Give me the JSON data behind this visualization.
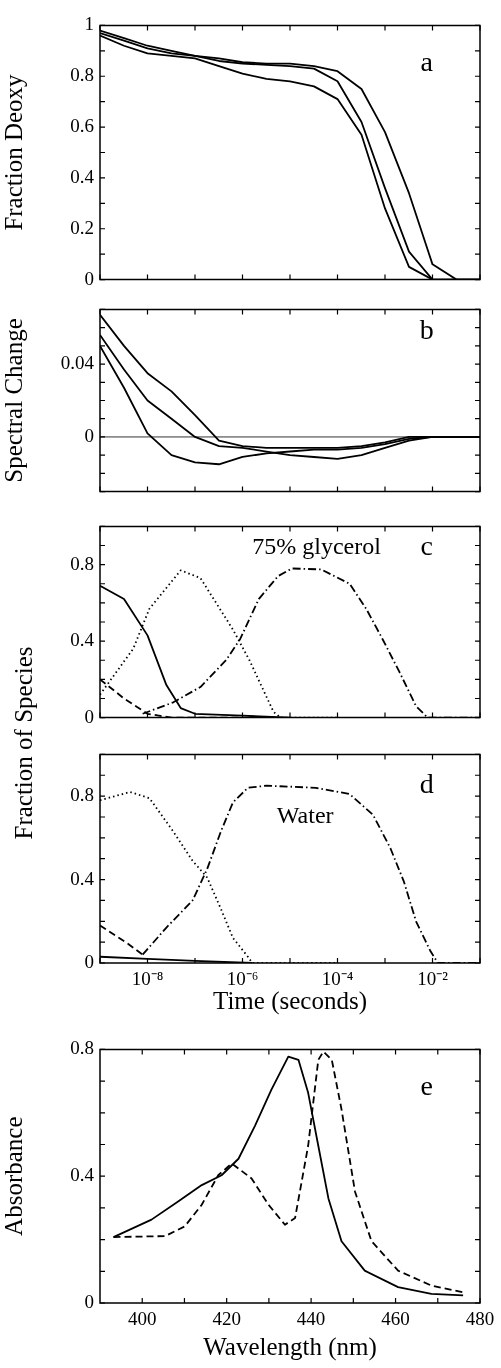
{
  "chart_data": [
    {
      "type": "line",
      "ylabel": "Fraction Deoxy",
      "log": "x",
      "tick_labels": "y",
      "annotations": [
        "a"
      ],
      "xlim": [
        1e-09,
        0.1
      ],
      "xticks": [
        {
          "value": 1e-09,
          "label": null
        },
        {
          "value": 1e-08,
          "label": null
        },
        {
          "value": 1e-07,
          "label": null
        },
        {
          "value": 1e-06,
          "label": null
        },
        {
          "value": 1e-05,
          "label": null
        },
        {
          "value": 0.0001,
          "label": null
        },
        {
          "value": 0.001,
          "label": null
        },
        {
          "value": 0.01,
          "label": null
        },
        {
          "value": 0.1,
          "label": null
        }
      ],
      "ylim": [
        0,
        1
      ],
      "yticks": [
        0,
        {
          "value": 0.1,
          "label": null
        },
        0.2,
        {
          "value": 0.3,
          "label": null
        },
        0.4,
        {
          "value": 0.5,
          "label": null
        },
        0.6,
        {
          "value": 0.7,
          "label": null
        },
        0.8,
        {
          "value": 0.9,
          "label": null
        },
        1
      ],
      "x": [
        1e-09,
        3.2e-09,
        1e-08,
        3.2e-08,
        1e-07,
        3.2e-07,
        1e-06,
        3.2e-06,
        1e-05,
        3.2e-05,
        0.0001,
        0.00032,
        0.001,
        0.0032,
        0.01,
        0.032,
        0.1
      ],
      "series": [
        {
          "color": "#000000",
          "line_style": "solid",
          "values": [
            0.98,
            0.95,
            0.92,
            0.9,
            0.88,
            0.87,
            0.855,
            0.85,
            0.85,
            0.84,
            0.82,
            0.75,
            0.58,
            0.34,
            0.06,
            0,
            0
          ]
        },
        {
          "color": "#000000",
          "line_style": "solid",
          "values": [
            0.97,
            0.94,
            0.91,
            0.89,
            0.88,
            0.86,
            0.85,
            0.845,
            0.84,
            0.83,
            0.78,
            0.62,
            0.36,
            0.11,
            0,
            0,
            0
          ]
        },
        {
          "color": "#000000",
          "line_style": "solid",
          "values": [
            0.96,
            0.92,
            0.89,
            0.88,
            0.87,
            0.84,
            0.81,
            0.79,
            0.78,
            0.76,
            0.71,
            0.57,
            0.28,
            0.05,
            0,
            0,
            0
          ]
        }
      ]
    },
    {
      "type": "line",
      "ylabel": "Spectral Change",
      "log": "x",
      "tick_labels": "y",
      "annotations": [
        "b"
      ],
      "xlim": [
        1e-09,
        0.1
      ],
      "xticks": [
        {
          "value": 1e-09,
          "label": null
        },
        {
          "value": 1e-08,
          "label": null
        },
        {
          "value": 1e-07,
          "label": null
        },
        {
          "value": 1e-06,
          "label": null
        },
        {
          "value": 1e-05,
          "label": null
        },
        {
          "value": 0.0001,
          "label": null
        },
        {
          "value": 0.001,
          "label": null
        },
        {
          "value": 0.01,
          "label": null
        },
        {
          "value": 0.1,
          "label": null
        }
      ],
      "ylim": [
        -0.03,
        0.07
      ],
      "yticks": [
        {
          "value": -0.03,
          "label": null
        },
        {
          "value": -0.02,
          "label": null
        },
        {
          "value": -0.01,
          "label": null
        },
        0,
        {
          "value": 0.01,
          "label": null
        },
        {
          "value": 0.02,
          "label": null
        },
        {
          "value": 0.03,
          "label": null
        },
        0.04,
        {
          "value": 0.05,
          "label": null
        },
        {
          "value": 0.06,
          "label": null
        },
        {
          "value": 0.07,
          "label": null
        }
      ],
      "ref_lines": [
        {
          "axis": "y",
          "value": 0,
          "label": null,
          "color": "#000000"
        }
      ],
      "x": [
        1e-09,
        3.2e-09,
        1e-08,
        3.2e-08,
        1e-07,
        3.2e-07,
        1e-06,
        3.2e-06,
        1e-05,
        3.2e-05,
        0.0001,
        0.00032,
        0.001,
        0.0032,
        0.01,
        0.032,
        0.1
      ],
      "series": [
        {
          "color": "#000000",
          "line_style": "solid",
          "values": [
            0.067,
            0.05,
            0.035,
            0.025,
            0.012,
            -0.002,
            -0.005,
            -0.006,
            -0.006,
            -0.006,
            -0.006,
            -0.005,
            -0.003,
            0,
            0,
            0,
            0
          ]
        },
        {
          "color": "#000000",
          "line_style": "solid",
          "values": [
            0.056,
            0.037,
            0.02,
            0.01,
            0,
            -0.005,
            -0.006,
            -0.008,
            -0.01,
            -0.011,
            -0.012,
            -0.01,
            -0.006,
            -0.002,
            0,
            0,
            0
          ]
        },
        {
          "color": "#000000",
          "line_style": "solid",
          "values": [
            0.05,
            0.027,
            0.002,
            -0.01,
            -0.014,
            -0.015,
            -0.011,
            -0.009,
            -0.008,
            -0.007,
            -0.007,
            -0.006,
            -0.004,
            -0.001,
            0,
            0,
            0
          ]
        }
      ]
    },
    {
      "type": "line",
      "ylabel": "Fraction of Species",
      "log": "x",
      "tick_labels": "y",
      "annotations": [
        "75% glycerol",
        "c"
      ],
      "xlim": [
        1e-09,
        0.1
      ],
      "xticks": [
        {
          "value": 1e-09,
          "label": null
        },
        {
          "value": 1e-08,
          "label": null
        },
        {
          "value": 1e-07,
          "label": null
        },
        {
          "value": 1e-06,
          "label": null
        },
        {
          "value": 1e-05,
          "label": null
        },
        {
          "value": 0.0001,
          "label": null
        },
        {
          "value": 0.001,
          "label": null
        },
        {
          "value": 0.01,
          "label": null
        },
        {
          "value": 0.1,
          "label": null
        }
      ],
      "ylim": [
        0,
        1
      ],
      "yticks": [
        0,
        {
          "value": 0.1,
          "label": null
        },
        {
          "value": 0.2,
          "label": null
        },
        {
          "value": 0.3,
          "label": null
        },
        0.4,
        {
          "value": 0.5,
          "label": null
        },
        {
          "value": 0.6,
          "label": null
        },
        {
          "value": 0.7,
          "label": null
        },
        0.8,
        {
          "value": 0.9,
          "label": null
        },
        {
          "value": 1,
          "label": null
        }
      ],
      "series": [
        {
          "color": "#000000",
          "line_style": "solid",
          "x": [
            1e-09,
            3.2e-09,
            1e-08,
            2.5e-08,
            5e-08,
            1e-07,
            1e-06,
            1e-05
          ],
          "values": [
            0.69,
            0.62,
            0.43,
            0.17,
            0.05,
            0.02,
            0.01,
            0
          ]
        },
        {
          "color": "#000000",
          "line_style": "dashed",
          "x": [
            1e-09,
            3.2e-09,
            1e-08,
            3.2e-08,
            1e-06
          ],
          "values": [
            0.2,
            0.1,
            0.02,
            0,
            0
          ]
        },
        {
          "color": "#000000",
          "line_style": "dotted",
          "x": [
            1e-09,
            5e-09,
            1.1e-08,
            5e-08,
            1.3e-07,
            6.3e-07,
            1.4e-06,
            4.5e-06,
            6.3e-06,
            0.0001
          ],
          "values": [
            0.12,
            0.36,
            0.57,
            0.77,
            0.73,
            0.46,
            0.3,
            0.03,
            0,
            0
          ]
        },
        {
          "color": "#000000",
          "line_style": "dashdot",
          "x": [
            7.9e-09,
            3.5e-08,
            1.3e-07,
            4.5e-07,
            8.9e-07,
            2.2e-06,
            5.6e-06,
            1.1e-05,
            4.5e-05,
            0.00018,
            0.0004,
            0.00089,
            0.002,
            0.0045,
            0.0079,
            0.1
          ],
          "values": [
            0.02,
            0.08,
            0.16,
            0.3,
            0.41,
            0.62,
            0.74,
            0.78,
            0.775,
            0.7,
            0.57,
            0.41,
            0.24,
            0.06,
            0,
            0
          ]
        }
      ]
    },
    {
      "type": "line",
      "xlabel": "Time (seconds)",
      "log": "x",
      "annotations": [
        "d",
        "Water"
      ],
      "xlim": [
        1e-09,
        0.1
      ],
      "xticks": [
        {
          "value": 1e-09,
          "label": null
        },
        {
          "value": 1e-08,
          "label": "10⁻⁸"
        },
        {
          "value": 1e-07,
          "label": null
        },
        {
          "value": 1e-06,
          "label": "10⁻⁶"
        },
        {
          "value": 1e-05,
          "label": null
        },
        {
          "value": 0.0001,
          "label": "10⁻⁴"
        },
        {
          "value": 0.001,
          "label": null
        },
        {
          "value": 0.01,
          "label": "10⁻²"
        },
        {
          "value": 0.1,
          "label": null
        }
      ],
      "ylim": [
        0,
        1
      ],
      "yticks": [
        0,
        {
          "value": 0.1,
          "label": null
        },
        {
          "value": 0.2,
          "label": null
        },
        {
          "value": 0.3,
          "label": null
        },
        0.4,
        {
          "value": 0.5,
          "label": null
        },
        {
          "value": 0.6,
          "label": null
        },
        {
          "value": 0.7,
          "label": null
        },
        0.8,
        {
          "value": 0.9,
          "label": null
        },
        {
          "value": 1,
          "label": null
        }
      ],
      "series": [
        {
          "color": "#000000",
          "line_style": "solid",
          "x": [
            1e-09,
            1e-08,
            1e-07,
            1.6e-06
          ],
          "values": [
            0.03,
            0.02,
            0.01,
            0
          ]
        },
        {
          "color": "#000000",
          "line_style": "dashed",
          "x": [
            1e-09,
            4e-09,
            7.9e-09
          ],
          "values": [
            0.18,
            0.09,
            0.04
          ]
        },
        {
          "color": "#000000",
          "line_style": "dotted",
          "x": [
            1e-09,
            4.3e-09,
            1.1e-08,
            3.5e-08,
            8.9e-08,
            1.8e-07,
            3.5e-07,
            6.3e-07,
            1.3e-06,
            1.6e-06,
            0.0001
          ],
          "values": [
            0.78,
            0.82,
            0.79,
            0.63,
            0.49,
            0.41,
            0.26,
            0.12,
            0.03,
            0,
            0
          ]
        },
        {
          "color": "#000000",
          "line_style": "dashdot",
          "x": [
            7.9e-09,
            2.5e-08,
            8.9e-08,
            1.8e-07,
            3.5e-07,
            6.3e-07,
            1.3e-06,
            3.2e-06,
            3.5e-05,
            0.00018,
            0.00056,
            0.0013,
            0.0025,
            0.0045,
            0.0089,
            0.013,
            0.1
          ],
          "values": [
            0.04,
            0.17,
            0.3,
            0.45,
            0.63,
            0.77,
            0.84,
            0.85,
            0.84,
            0.81,
            0.71,
            0.55,
            0.39,
            0.2,
            0.06,
            0,
            0
          ]
        }
      ]
    },
    {
      "type": "line",
      "xlabel": "Wavelength (nm)",
      "ylabel": "Absorbance",
      "annotations": [
        "e"
      ],
      "xlim": [
        390,
        480
      ],
      "xticks": [
        400,
        {
          "value": 410,
          "label": null
        },
        420,
        {
          "value": 430,
          "label": null
        },
        440,
        {
          "value": 450,
          "label": null
        },
        460,
        {
          "value": 470,
          "label": null
        },
        480
      ],
      "ylim": [
        0,
        0.8
      ],
      "yticks": [
        0,
        {
          "value": 0.1,
          "label": null
        },
        {
          "value": 0.2,
          "label": null
        },
        {
          "value": 0.3,
          "label": null
        },
        0.4,
        {
          "value": 0.5,
          "label": null
        },
        {
          "value": 0.6,
          "label": null
        },
        {
          "value": 0.7,
          "label": null
        },
        0.8
      ],
      "series": [
        {
          "color": "#000000",
          "line_style": "solid",
          "x": [
            393.2,
            402.2,
            408.5,
            414.1,
            418.8,
            422.8,
            426.7,
            430.6,
            434.6,
            437,
            439.3,
            441.7,
            444.1,
            447.2,
            452.7,
            460.6,
            468.5,
            476
          ],
          "values": [
            0.208,
            0.263,
            0.32,
            0.372,
            0.403,
            0.455,
            0.559,
            0.673,
            0.777,
            0.767,
            0.663,
            0.496,
            0.33,
            0.195,
            0.102,
            0.05,
            0.029,
            0.024
          ]
        },
        {
          "color": "#000000",
          "line_style": "dashed",
          "x": [
            393.2,
            405.4,
            410.1,
            414.1,
            418,
            421.2,
            425.9,
            429.9,
            433.8,
            436.2,
            439.3,
            441.7,
            442.9,
            444.9,
            447.2,
            450.4,
            454.3,
            460.6,
            468.5,
            476
          ],
          "values": [
            0.208,
            0.211,
            0.242,
            0.31,
            0.403,
            0.44,
            0.393,
            0.31,
            0.247,
            0.268,
            0.496,
            0.767,
            0.793,
            0.767,
            0.611,
            0.351,
            0.195,
            0.102,
            0.055,
            0.034
          ]
        }
      ]
    }
  ]
}
